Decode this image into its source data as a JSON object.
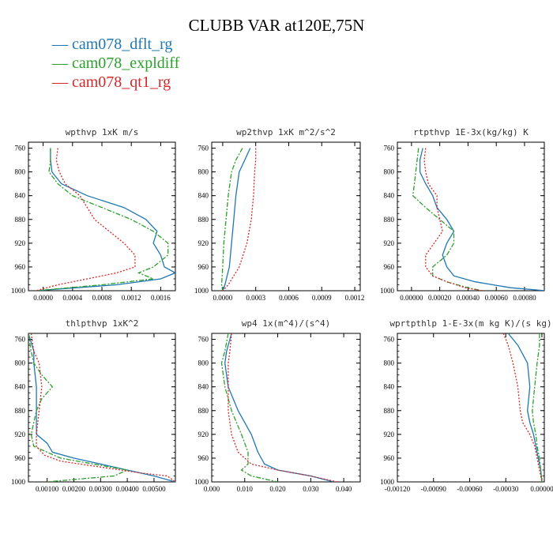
{
  "page_title": "CLUBB VAR at120E,75N",
  "legend": [
    {
      "label": "— cam078_dflt_rg",
      "color": "#1f77b4"
    },
    {
      "label": "— cam078_expldiff",
      "color": "#2ca02c"
    },
    {
      "label": "— cam078_qt1_rg",
      "color": "#d62728"
    }
  ],
  "chart_data": [
    {
      "type": "line",
      "title": "wpthvp  1xK m/s",
      "xlim": [
        -0.0002,
        0.0018
      ],
      "ylim": [
        1000,
        750
      ],
      "xticks": [
        0.0,
        0.0004,
        0.0008,
        0.0012,
        0.0016
      ],
      "xtick_labels": [
        "0.0000",
        "0.0004",
        "0.0008",
        "0.0012",
        "0.0016"
      ],
      "yticks": [
        760,
        800,
        840,
        880,
        920,
        960,
        1000
      ],
      "series": [
        {
          "name": "cam078_dflt_rg",
          "color": "#1f77b4",
          "dash": "",
          "y": [
            760,
            780,
            800,
            820,
            840,
            860,
            880,
            900,
            920,
            940,
            960,
            970,
            980,
            990,
            1000
          ],
          "x": [
            0.0001,
            0.0001,
            0.00012,
            0.00025,
            0.0006,
            0.0011,
            0.0014,
            0.00155,
            0.0015,
            0.0016,
            0.00165,
            0.0018,
            0.0016,
            0.001,
            -0.0001
          ]
        },
        {
          "name": "cam078_expldiff",
          "color": "#2ca02c",
          "dash": "6,2,2,2",
          "y": [
            760,
            780,
            800,
            820,
            840,
            860,
            880,
            900,
            920,
            940,
            960,
            970,
            980,
            990,
            1000
          ],
          "x": [
            0.0001,
            0.0001,
            8e-05,
            0.0002,
            0.0004,
            0.0008,
            0.0012,
            0.0015,
            0.0017,
            0.0017,
            0.0015,
            0.0013,
            0.0015,
            0.0008,
            -0.0001
          ]
        },
        {
          "name": "cam078_qt1_rg",
          "color": "#d62728",
          "dash": "2,2",
          "y": [
            760,
            780,
            800,
            820,
            840,
            860,
            880,
            900,
            920,
            940,
            960,
            970,
            980,
            990,
            1000
          ],
          "x": [
            0.0002,
            0.00018,
            0.00022,
            0.0003,
            0.0005,
            0.0006,
            0.0007,
            0.0009,
            0.0011,
            0.00125,
            0.00125,
            0.001,
            0.0006,
            0.0002,
            -0.0001
          ]
        }
      ]
    },
    {
      "type": "line",
      "title": "wp2thvp  1xK m^2/s^2",
      "xlim": [
        -0.0001,
        0.00125
      ],
      "ylim": [
        1000,
        750
      ],
      "xticks": [
        0.0,
        0.0003,
        0.0006,
        0.0009,
        0.0012
      ],
      "xtick_labels": [
        "0.0000",
        "0.0003",
        "0.0006",
        "0.0009",
        "0.0012"
      ],
      "yticks": [
        760,
        800,
        840,
        880,
        920,
        960,
        1000
      ],
      "series": [
        {
          "name": "cam078_dflt_rg",
          "color": "#1f77b4",
          "dash": "",
          "y": [
            760,
            780,
            800,
            840,
            880,
            920,
            960,
            990,
            1000
          ],
          "x": [
            0.00025,
            0.0002,
            0.00015,
            0.00012,
            0.0001,
            8e-05,
            6e-05,
            2e-05,
            0.0
          ]
        },
        {
          "name": "cam078_expldiff",
          "color": "#2ca02c",
          "dash": "6,2,2,2",
          "y": [
            760,
            780,
            800,
            840,
            880,
            920,
            960,
            990,
            1000
          ],
          "x": [
            0.00018,
            0.00012,
            8e-05,
            5e-05,
            3e-05,
            1e-05,
            0.0,
            -1e-05,
            0.0
          ]
        },
        {
          "name": "cam078_qt1_rg",
          "color": "#d62728",
          "dash": "2,2",
          "y": [
            760,
            780,
            800,
            840,
            880,
            920,
            960,
            990,
            1000
          ],
          "x": [
            0.0003,
            0.0003,
            0.00029,
            0.00028,
            0.00026,
            0.00022,
            0.00015,
            5e-05,
            0.0
          ]
        }
      ]
    },
    {
      "type": "line",
      "title": "rtpthvp  1E-3x(kg/kg) K",
      "xlim": [
        -0.0001,
        0.00094
      ],
      "ylim": [
        1000,
        750
      ],
      "xticks": [
        0.0,
        0.0002,
        0.0004,
        0.0006,
        0.0008
      ],
      "xtick_labels": [
        "0.00000",
        "0.00020",
        "0.00040",
        "0.00060",
        "0.00080"
      ],
      "yticks": [
        760,
        800,
        840,
        880,
        920,
        960,
        1000
      ],
      "series": [
        {
          "name": "cam078_dflt_rg",
          "color": "#1f77b4",
          "dash": "",
          "y": [
            760,
            780,
            800,
            820,
            840,
            860,
            880,
            900,
            920,
            940,
            960,
            975,
            985,
            995,
            1000
          ],
          "x": [
            8e-05,
            6e-05,
            6e-05,
            0.0001,
            0.00015,
            0.00018,
            0.00025,
            0.0003,
            0.00025,
            0.00022,
            0.00025,
            0.0003,
            0.00045,
            0.0007,
            0.00095
          ]
        },
        {
          "name": "cam078_expldiff",
          "color": "#2ca02c",
          "dash": "6,2,2,2",
          "y": [
            760,
            780,
            800,
            820,
            840,
            860,
            880,
            900,
            920,
            940,
            960,
            975,
            985,
            995,
            1000
          ],
          "x": [
            5e-05,
            4e-05,
            3e-05,
            2e-05,
            1e-05,
            0.0001,
            0.0002,
            0.0003,
            0.0003,
            0.00025,
            0.00015,
            0.00015,
            0.00025,
            0.0004,
            0.0005
          ]
        },
        {
          "name": "cam078_qt1_rg",
          "color": "#d62728",
          "dash": "2,2",
          "y": [
            760,
            780,
            800,
            820,
            840,
            860,
            880,
            900,
            920,
            940,
            960,
            975,
            985,
            995,
            1000
          ],
          "x": [
            0.0001,
            9e-05,
            0.0001,
            0.00012,
            0.00018,
            0.00018,
            0.0002,
            0.00022,
            0.00016,
            0.0001,
            0.0001,
            0.00015,
            0.00025,
            0.00038,
            0.0005
          ]
        }
      ]
    },
    {
      "type": "line",
      "title": "thlpthvp  1xK^2",
      "xlim": [
        0.0003,
        0.0058
      ],
      "ylim": [
        1000,
        750
      ],
      "xticks": [
        0.001,
        0.002,
        0.003,
        0.004,
        0.005
      ],
      "xtick_labels": [
        "0.00100",
        "0.00200",
        "0.00300",
        "0.00400",
        "0.00500"
      ],
      "yticks": [
        760,
        800,
        840,
        880,
        920,
        960,
        1000
      ],
      "series": [
        {
          "name": "cam078_dflt_rg",
          "color": "#1f77b4",
          "dash": "",
          "y": [
            750,
            780,
            800,
            840,
            880,
            920,
            935,
            950,
            960,
            970,
            980,
            990,
            1000
          ],
          "x": [
            0.0003,
            0.0005,
            0.0005,
            0.0006,
            0.0006,
            0.0006,
            0.001,
            0.0012,
            0.002,
            0.003,
            0.004,
            0.005,
            0.0058
          ]
        },
        {
          "name": "cam078_expldiff",
          "color": "#2ca02c",
          "dash": "6,2,2,2",
          "y": [
            750,
            780,
            800,
            820,
            840,
            860,
            880,
            900,
            920,
            940,
            960,
            980,
            990,
            1000
          ],
          "x": [
            0.0003,
            0.0004,
            0.0005,
            0.0008,
            0.0012,
            0.0008,
            0.0006,
            0.0005,
            0.0004,
            0.0005,
            0.0015,
            0.004,
            0.0035,
            0.001
          ]
        },
        {
          "name": "cam078_qt1_rg",
          "color": "#d62728",
          "dash": "2,2",
          "y": [
            750,
            780,
            800,
            840,
            880,
            920,
            940,
            955,
            965,
            975,
            985,
            990,
            1000
          ],
          "x": [
            0.0004,
            0.0005,
            0.0007,
            0.0008,
            0.0007,
            0.0006,
            0.0006,
            0.0009,
            0.0015,
            0.003,
            0.0045,
            0.0055,
            0.0058
          ]
        }
      ]
    },
    {
      "type": "line",
      "title": "wp4  1x(m^4)/(s^4)",
      "xlim": [
        0.0,
        0.045
      ],
      "ylim": [
        1000,
        750
      ],
      "xticks": [
        0.0,
        0.01,
        0.02,
        0.03,
        0.04
      ],
      "xtick_labels": [
        "0.000",
        "0.010",
        "0.020",
        "0.030",
        "0.040"
      ],
      "yticks": [
        760,
        800,
        840,
        880,
        920,
        960,
        1000
      ],
      "series": [
        {
          "name": "cam078_dflt_rg",
          "color": "#1f77b4",
          "dash": "",
          "y": [
            750,
            780,
            800,
            840,
            880,
            920,
            950,
            970,
            980,
            990,
            1000
          ],
          "x": [
            0.006,
            0.0045,
            0.004,
            0.005,
            0.008,
            0.012,
            0.014,
            0.016,
            0.02,
            0.03,
            0.037
          ]
        },
        {
          "name": "cam078_expldiff",
          "color": "#2ca02c",
          "dash": "6,2,2,2",
          "y": [
            750,
            780,
            800,
            840,
            880,
            920,
            950,
            970,
            980,
            990,
            1000
          ],
          "x": [
            0.005,
            0.004,
            0.003,
            0.004,
            0.006,
            0.009,
            0.011,
            0.011,
            0.009,
            0.012,
            0.02
          ]
        },
        {
          "name": "cam078_qt1_rg",
          "color": "#d62728",
          "dash": "2,2",
          "y": [
            750,
            780,
            800,
            840,
            880,
            920,
            950,
            970,
            980,
            990,
            1000
          ],
          "x": [
            0.006,
            0.0055,
            0.005,
            0.005,
            0.005,
            0.006,
            0.008,
            0.012,
            0.02,
            0.03,
            0.038
          ]
        }
      ]
    },
    {
      "type": "line",
      "title": "wprtpthlp  1-E-3x(m kg K)/(s kg)",
      "xlim": [
        -0.0012,
        2e-05
      ],
      "ylim": [
        1000,
        750
      ],
      "xticks": [
        -0.0012,
        -0.0009,
        -0.0006,
        -0.0003,
        0.0
      ],
      "xtick_labels": [
        "-0.00120",
        "-0.00090",
        "-0.00060",
        "-0.00030",
        "0.00000"
      ],
      "yticks": [
        760,
        800,
        840,
        880,
        920,
        960,
        1000
      ],
      "series": [
        {
          "name": "cam078_dflt_rg",
          "color": "#1f77b4",
          "dash": "",
          "y": [
            750,
            770,
            800,
            840,
            880,
            900,
            920,
            940,
            960,
            980,
            1000
          ],
          "x": [
            -0.00028,
            -0.0002,
            -0.00012,
            -0.0001,
            -0.00012,
            -0.0001,
            -7e-05,
            -5e-05,
            -3e-05,
            -1e-05,
            0.0
          ]
        },
        {
          "name": "cam078_expldiff",
          "color": "#2ca02c",
          "dash": "6,2,2,2",
          "y": [
            750,
            770,
            800,
            840,
            880,
            900,
            920,
            940,
            960,
            980,
            1000
          ],
          "x": [
            -2e-05,
            -2e-05,
            -4e-05,
            -6e-05,
            -8e-05,
            -7e-05,
            -5e-05,
            -4e-05,
            -2e-05,
            -1e-05,
            0.0
          ]
        },
        {
          "name": "cam078_qt1_rg",
          "color": "#d62728",
          "dash": "2,2",
          "y": [
            750,
            770,
            800,
            840,
            880,
            900,
            920,
            940,
            960,
            980,
            1000
          ],
          "x": [
            -0.00032,
            -0.00028,
            -0.00024,
            -0.0002,
            -0.00018,
            -0.00016,
            -0.0001,
            -6e-05,
            -4e-05,
            -2e-05,
            0.0
          ]
        }
      ]
    }
  ]
}
